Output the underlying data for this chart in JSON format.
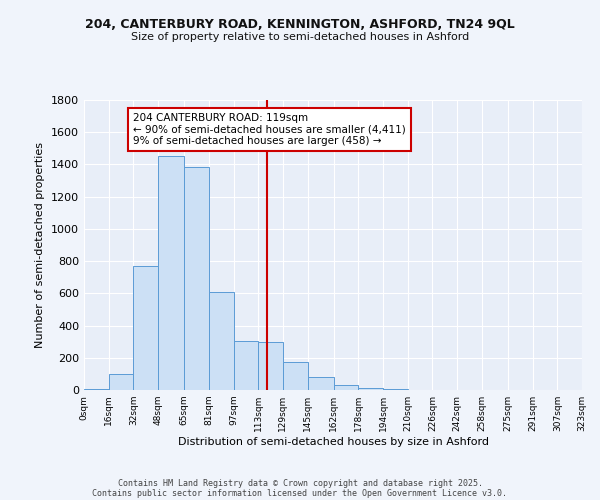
{
  "title_line1": "204, CANTERBURY ROAD, KENNINGTON, ASHFORD, TN24 9QL",
  "title_line2": "Size of property relative to semi-detached houses in Ashford",
  "xlabel": "Distribution of semi-detached houses by size in Ashford",
  "ylabel": "Number of semi-detached properties",
  "footer_line1": "Contains HM Land Registry data © Crown copyright and database right 2025.",
  "footer_line2": "Contains public sector information licensed under the Open Government Licence v3.0.",
  "bin_labels": [
    "0sqm",
    "16sqm",
    "32sqm",
    "48sqm",
    "65sqm",
    "81sqm",
    "97sqm",
    "113sqm",
    "129sqm",
    "145sqm",
    "162sqm",
    "178sqm",
    "194sqm",
    "210sqm",
    "226sqm",
    "242sqm",
    "258sqm",
    "275sqm",
    "291sqm",
    "307sqm",
    "323sqm"
  ],
  "bar_values": [
    5,
    100,
    770,
    1450,
    1385,
    610,
    305,
    300,
    175,
    80,
    30,
    15,
    5,
    2,
    1,
    0,
    0,
    0,
    0,
    0
  ],
  "bar_color": "#cce0f5",
  "bar_edge_color": "#5b9bd5",
  "vline_x_index": 7,
  "vline_color": "#cc0000",
  "annotation_text": "204 CANTERBURY ROAD: 119sqm\n← 90% of semi-detached houses are smaller (4,411)\n9% of semi-detached houses are larger (458) →",
  "annotation_box_facecolor": "#ffffff",
  "annotation_box_edgecolor": "#cc0000",
  "ylim": [
    0,
    1800
  ],
  "yticks": [
    0,
    200,
    400,
    600,
    800,
    1000,
    1200,
    1400,
    1600,
    1800
  ],
  "fig_facecolor": "#f0f4fb",
  "axes_facecolor": "#e8eef8",
  "grid_color": "#ffffff",
  "n_bins": 20,
  "bin_edges": [
    0,
    16,
    32,
    48,
    65,
    81,
    97,
    113,
    129,
    145,
    162,
    178,
    194,
    210,
    226,
    242,
    258,
    275,
    291,
    307,
    323
  ]
}
